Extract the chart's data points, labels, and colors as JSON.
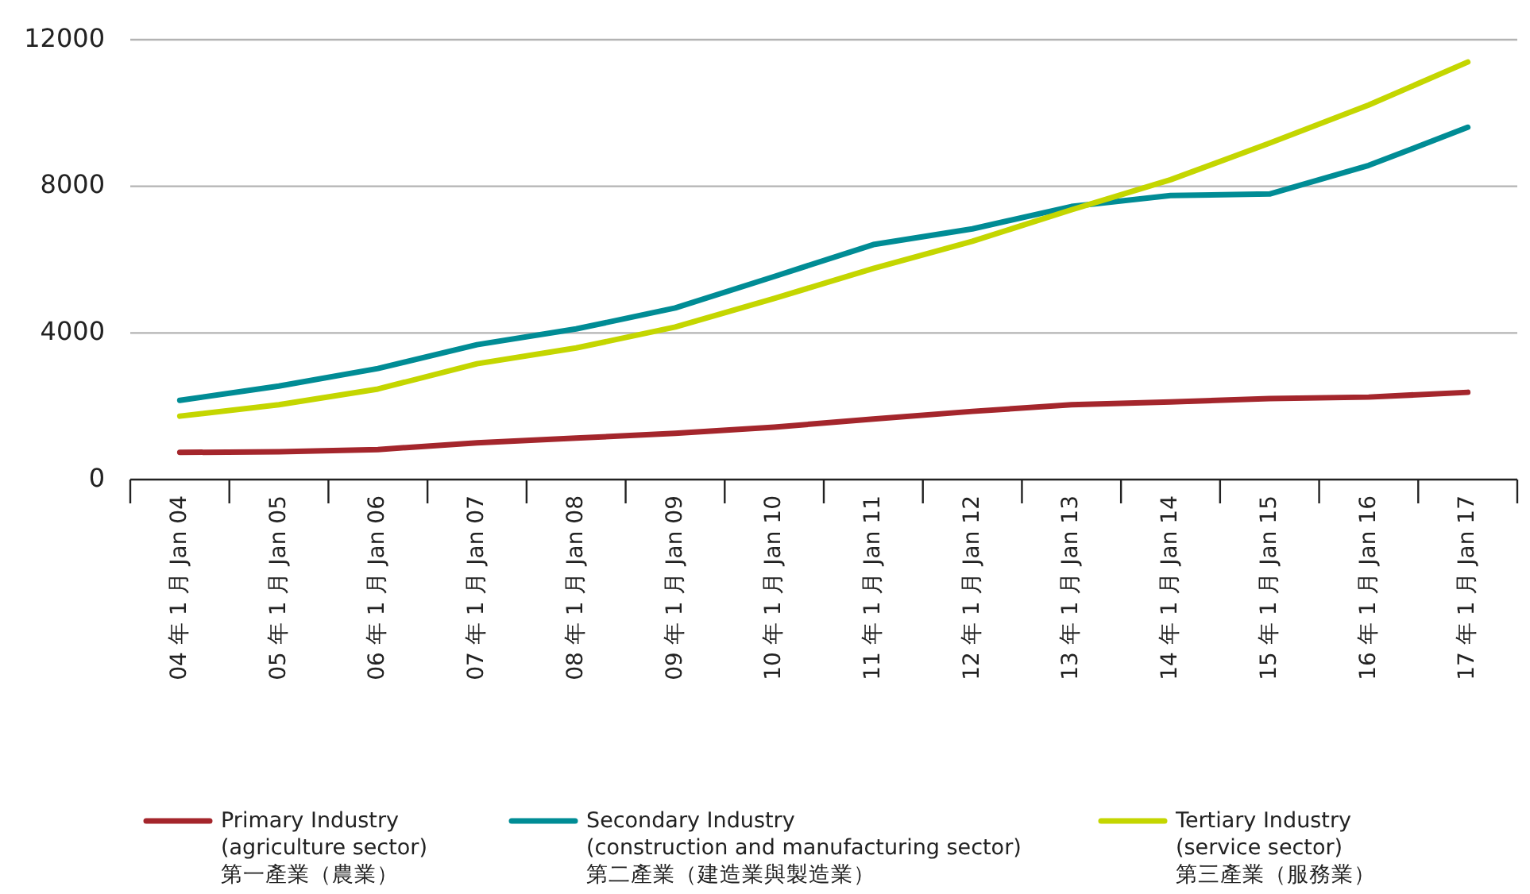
{
  "chart_data": {
    "type": "line",
    "categories": [
      "04 年 1 月 Jan 04",
      "05 年 1 月 Jan 05",
      "06 年 1 月 Jan 06",
      "07 年 1 月 Jan 07",
      "08 年 1 月 Jan 08",
      "09 年 1 月 Jan 09",
      "10 年 1 月 Jan 10",
      "11 年 1 月 Jan 11",
      "12 年 1 月 Jan 12",
      "13 年 1 月 Jan 13",
      "14 年 1 月 Jan 14",
      "15 年 1 月 Jan 15",
      "16 年 1 月 Jan 16",
      "17 年 1 月 Jan 17"
    ],
    "series": [
      {
        "name": "Primary Industry\n(agriculture sector)\n第一產業（農業）",
        "color": "#a4262c",
        "values": [
          740,
          760,
          820,
          1000,
          1130,
          1260,
          1430,
          1650,
          1860,
          2040,
          2120,
          2210,
          2250,
          2380
        ]
      },
      {
        "name": "Secondary Industry\n(construction and manufacturing sector)\n第二產業（建造業與製造業）",
        "color": "#008c95",
        "values": [
          2160,
          2550,
          3030,
          3680,
          4110,
          4680,
          5540,
          6410,
          6840,
          7450,
          7750,
          7790,
          8570,
          9610
        ]
      },
      {
        "name": "Tertiary Industry\n(service sector)\n第三產業（服務業）",
        "color": "#c4d600",
        "values": [
          1730,
          2040,
          2470,
          3160,
          3590,
          4160,
          4940,
          5760,
          6500,
          7360,
          8180,
          9180,
          10220,
          11390
        ]
      }
    ],
    "ylim": [
      0,
      12000
    ],
    "yticks": [
      0,
      4000,
      8000,
      12000
    ],
    "grid": "y",
    "legend": "bottom",
    "marker": "none",
    "line_style": "solid"
  }
}
